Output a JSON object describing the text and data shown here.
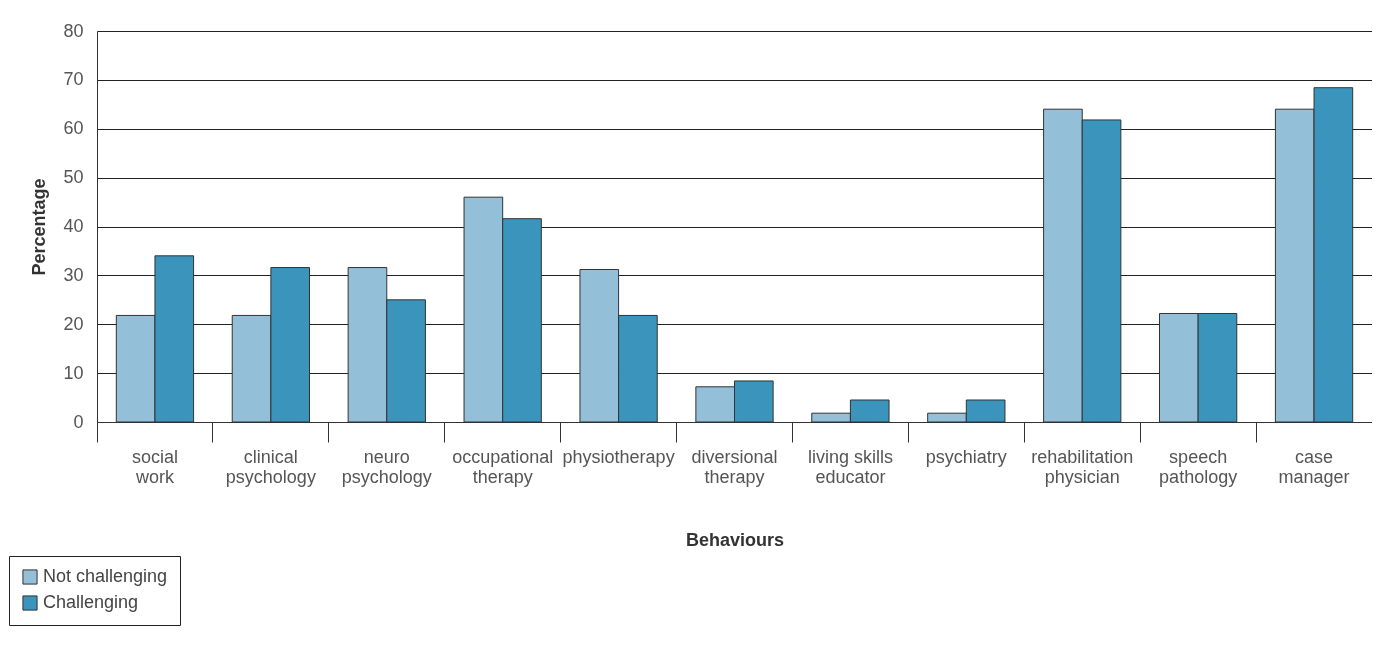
{
  "chart_data": {
    "type": "bar",
    "xlabel": "Behaviours",
    "ylabel": "Percentage",
    "categories": [
      "social work",
      "clinical psychology",
      "neuro psychology",
      "occupational therapy",
      "physiotherapy",
      "diversional therapy",
      "living skills educator",
      "psychiatry",
      "rehabilitation physician",
      "speech pathology",
      "case manager"
    ],
    "series": [
      {
        "name": "Not challenging",
        "color": "#93bfd8",
        "values": [
          21.8,
          21.8,
          31.6,
          46,
          31.2,
          7.2,
          1.8,
          1.8,
          64,
          22.2,
          64
        ]
      },
      {
        "name": "Challenging",
        "color": "#3a94bb",
        "values": [
          34,
          31.6,
          25,
          41.6,
          21.8,
          8.4,
          4.5,
          4.5,
          61.8,
          22.2,
          68.4
        ]
      }
    ],
    "ylim": [
      0,
      80
    ],
    "yticks": [
      0,
      10,
      20,
      30,
      40,
      50,
      60,
      70,
      80
    ],
    "grid": "y",
    "legend": "bottom left"
  }
}
